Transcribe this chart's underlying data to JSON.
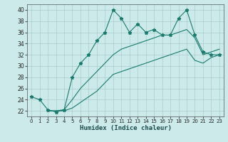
{
  "bg_color": "#cceaea",
  "line_color": "#1a7a6e",
  "grid_color": "#aacccc",
  "xlabel": "Humidex (Indice chaleur)",
  "xlim": [
    -0.5,
    23.5
  ],
  "ylim": [
    21,
    41
  ],
  "yticks": [
    22,
    24,
    26,
    28,
    30,
    32,
    34,
    36,
    38,
    40
  ],
  "xticks": [
    0,
    1,
    2,
    3,
    4,
    5,
    6,
    7,
    8,
    9,
    10,
    11,
    12,
    13,
    14,
    15,
    16,
    17,
    18,
    19,
    20,
    21,
    22,
    23
  ],
  "series1_x": [
    0,
    1,
    2,
    3,
    4,
    5,
    6,
    7,
    8,
    9,
    10,
    11,
    12,
    13,
    14,
    15,
    16,
    17,
    18,
    19,
    20,
    21,
    22,
    23
  ],
  "series1_y": [
    24.5,
    24.0,
    22.2,
    21.8,
    22.2,
    28.0,
    30.5,
    32.0,
    34.5,
    36.0,
    40.0,
    38.5,
    36.0,
    37.5,
    36.0,
    36.5,
    35.5,
    35.5,
    38.5,
    40.0,
    35.5,
    32.5,
    32.0,
    32.0
  ],
  "series2_x": [
    2,
    3,
    4,
    5,
    6,
    7,
    8,
    9,
    10,
    11,
    12,
    13,
    14,
    15,
    16,
    17,
    18,
    19,
    20,
    21,
    22,
    23
  ],
  "series2_y": [
    22.0,
    22.0,
    22.2,
    24.0,
    26.0,
    27.5,
    29.0,
    30.5,
    32.0,
    33.0,
    33.5,
    34.0,
    34.5,
    35.0,
    35.5,
    35.5,
    36.0,
    36.5,
    35.0,
    32.0,
    32.5,
    33.0
  ],
  "series3_x": [
    2,
    3,
    4,
    5,
    6,
    7,
    8,
    9,
    10,
    11,
    12,
    13,
    14,
    15,
    16,
    17,
    18,
    19,
    20,
    21,
    22,
    23
  ],
  "series3_y": [
    22.0,
    22.0,
    22.0,
    22.5,
    23.5,
    24.5,
    25.5,
    27.0,
    28.5,
    29.0,
    29.5,
    30.0,
    30.5,
    31.0,
    31.5,
    32.0,
    32.5,
    33.0,
    31.0,
    30.5,
    31.5,
    32.0
  ]
}
